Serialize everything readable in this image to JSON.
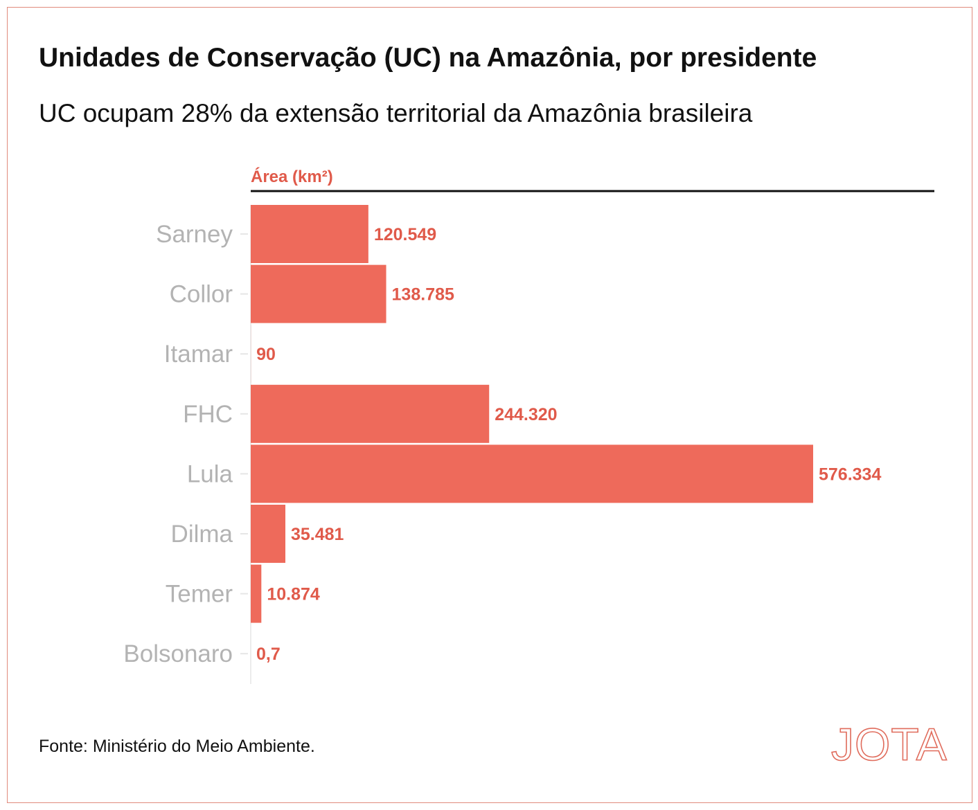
{
  "title": "Unidades de Conservação (UC) na Amazônia, por presidente",
  "subtitle": "UC ocupam 28% da extensão territorial da Amazônia brasileira",
  "source": "Fonte: Ministério do Meio Ambiente.",
  "logo": "JOTA",
  "colors": {
    "bar": "#ee6a5b",
    "value_label": "#e05a4a",
    "axis_title": "#e05a4a",
    "category_label": "#b3b3b3",
    "frame": "#e08a7c"
  },
  "chart_data": {
    "type": "bar",
    "orientation": "horizontal",
    "axis_title": "Área (km²)",
    "categories": [
      "Sarney",
      "Collor",
      "Itamar",
      "FHC",
      "Lula",
      "Dilma",
      "Temer",
      "Bolsonaro"
    ],
    "values": [
      120549,
      138785,
      90,
      244320,
      576334,
      35481,
      10874,
      0.7
    ],
    "value_labels": [
      "120.549",
      "138.785",
      "90",
      "244.320",
      "576.334",
      "35.481",
      "10.874",
      "0,7"
    ],
    "xlim": [
      0,
      576334
    ],
    "grid": false,
    "legend": "none"
  }
}
